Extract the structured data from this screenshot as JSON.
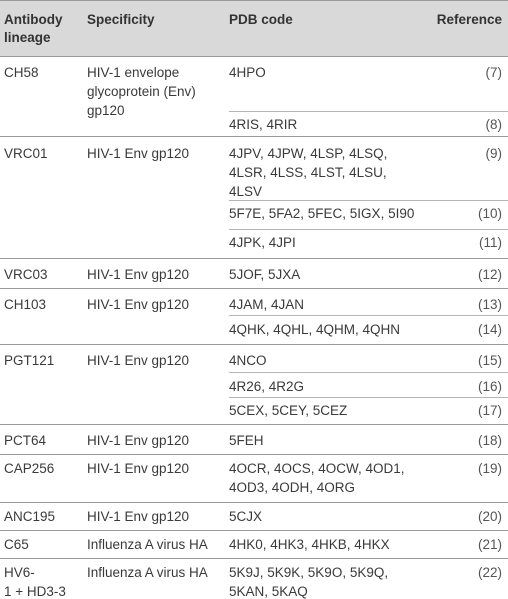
{
  "headers": {
    "lineage": "Antibody\nlineage",
    "specificity": "Specificity",
    "pdb": "PDB code",
    "reference": "Reference"
  },
  "rows": [
    {
      "lineage": "CH58",
      "specificity": "HIV-1 envelope\nglycoprotein (Env)\ngp120",
      "entries": [
        {
          "pdb": "4HPO",
          "ref": "(7)"
        },
        {
          "pdb": "4RIS, 4RIR",
          "ref": "(8)"
        }
      ]
    },
    {
      "lineage": "VRC01",
      "specificity": "HIV-1 Env gp120",
      "entries": [
        {
          "pdb": "4JPV, 4JPW, 4LSP, 4LSQ,\n4LSR, 4LSS, 4LST, 4LSU,\n4LSV",
          "ref": "(9)"
        },
        {
          "pdb": "5F7E, 5FA2, 5FEC, 5IGX, 5I90",
          "ref": "(10)"
        },
        {
          "pdb": "4JPK, 4JPI",
          "ref": "(11)"
        }
      ]
    },
    {
      "lineage": "VRC03",
      "specificity": "HIV-1 Env gp120",
      "entries": [
        {
          "pdb": "5JOF, 5JXA",
          "ref": "(12)"
        }
      ]
    },
    {
      "lineage": "CH103",
      "specificity": "HIV-1 Env gp120",
      "entries": [
        {
          "pdb": "4JAM, 4JAN",
          "ref": "(13)"
        },
        {
          "pdb": "4QHK, 4QHL, 4QHM, 4QHN",
          "ref": "(14)"
        }
      ]
    },
    {
      "lineage": "PGT121",
      "specificity": "HIV-1 Env gp120",
      "entries": [
        {
          "pdb": "4NCO",
          "ref": "(15)"
        },
        {
          "pdb": "4R26, 4R2G",
          "ref": "(16)"
        },
        {
          "pdb": "5CEX, 5CEY, 5CEZ",
          "ref": "(17)"
        }
      ]
    },
    {
      "lineage": "PCT64",
      "specificity": "HIV-1 Env gp120",
      "entries": [
        {
          "pdb": "5FEH",
          "ref": "(18)"
        }
      ]
    },
    {
      "lineage": "CAP256",
      "specificity": "HIV-1 Env gp120",
      "entries": [
        {
          "pdb": "4OCR, 4OCS, 4OCW, 4OD1,\n4OD3, 4ODH, 4ORG",
          "ref": "(19)"
        }
      ]
    },
    {
      "lineage": "ANC195",
      "specificity": "HIV-1 Env gp120",
      "entries": [
        {
          "pdb": "5CJX",
          "ref": "(20)"
        }
      ]
    },
    {
      "lineage": "C65",
      "specificity": "Influenza A virus HA",
      "entries": [
        {
          "pdb": "4HK0, 4HK3, 4HKB, 4HKX",
          "ref": "(21)"
        }
      ]
    },
    {
      "lineage": "HV6-\n1 + HD3-3",
      "specificity": "Influenza A virus HA",
      "entries": [
        {
          "pdb": "5K9J, 5K9K, 5K9O, 5K9Q,\n5KAN, 5KAQ",
          "ref": "(22)"
        }
      ]
    }
  ]
}
